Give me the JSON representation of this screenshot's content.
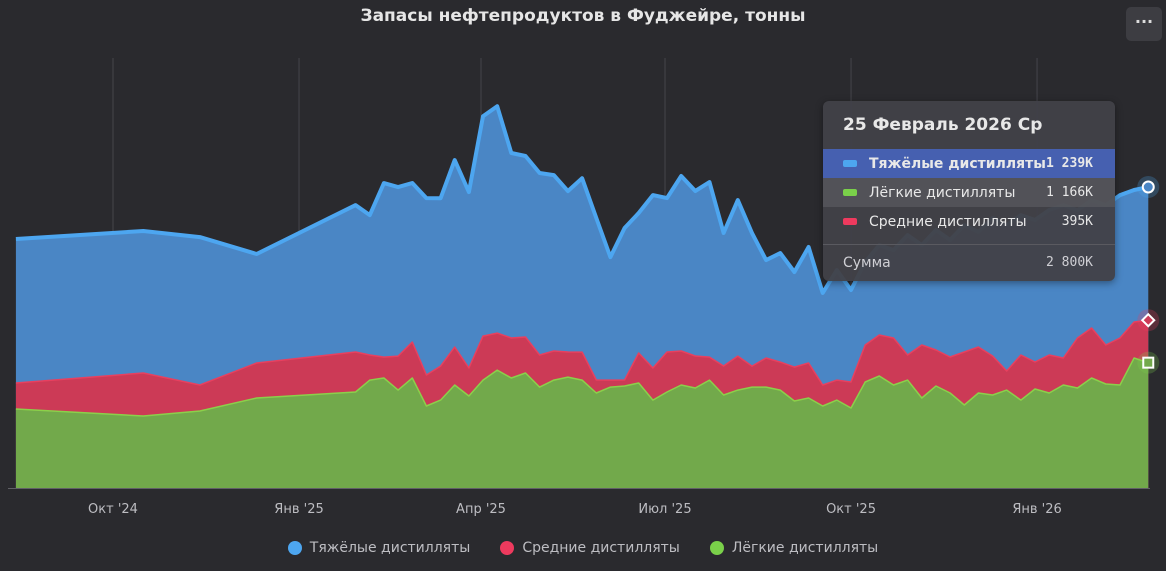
{
  "chart_data": {
    "type": "area",
    "stacked": true,
    "title": "Запасы нефтепродуктов в Фуджейре, тонны",
    "xlabel": "",
    "ylabel": "",
    "unit": "K tonnes",
    "ylim": [
      0,
      4000
    ],
    "grid": "vertical",
    "legend_position": "bottom",
    "x_ticks": [
      {
        "date": "2024-10-01",
        "label": "Окт '24"
      },
      {
        "date": "2025-01-01",
        "label": "Янв '25"
      },
      {
        "date": "2025-04-01",
        "label": "Апр '25"
      },
      {
        "date": "2025-07-01",
        "label": "Июл '25"
      },
      {
        "date": "2025-10-01",
        "label": "Окт '25"
      },
      {
        "date": "2026-01-01",
        "label": "Янв '26"
      }
    ],
    "x": [
      "2024-08-14",
      "2024-10-16",
      "2024-11-13",
      "2024-12-11",
      "2025-01-29",
      "2025-02-05",
      "2025-02-12",
      "2025-02-19",
      "2025-02-26",
      "2025-03-05",
      "2025-03-12",
      "2025-03-19",
      "2025-03-26",
      "2025-04-02",
      "2025-04-09",
      "2025-04-16",
      "2025-04-23",
      "2025-04-30",
      "2025-05-07",
      "2025-05-14",
      "2025-05-21",
      "2025-05-28",
      "2025-06-04",
      "2025-06-11",
      "2025-06-18",
      "2025-06-25",
      "2025-07-02",
      "2025-07-09",
      "2025-07-16",
      "2025-07-23",
      "2025-07-30",
      "2025-08-06",
      "2025-08-13",
      "2025-08-20",
      "2025-08-27",
      "2025-09-03",
      "2025-09-10",
      "2025-09-17",
      "2025-09-24",
      "2025-10-01",
      "2025-10-08",
      "2025-10-15",
      "2025-10-22",
      "2025-10-29",
      "2025-11-05",
      "2025-11-12",
      "2025-11-19",
      "2025-11-26",
      "2025-12-03",
      "2025-12-10",
      "2025-12-17",
      "2025-12-24",
      "2025-12-31",
      "2026-01-07",
      "2026-01-14",
      "2026-01-21",
      "2026-01-28",
      "2026-02-04",
      "2026-02-11",
      "2026-02-18",
      "2026-02-25"
    ],
    "series": [
      {
        "name": "Лёгкие дистилляты",
        "color": "#72a94b",
        "line": "#8bd04a",
        "marker": "square",
        "values": [
          735,
          670,
          716,
          837,
          893,
          1004,
          1023,
          911,
          1023,
          763,
          818,
          958,
          856,
          1004,
          1097,
          1023,
          1070,
          939,
          1004,
          1032,
          1004,
          884,
          939,
          949,
          977,
          818,
          893,
          958,
          930,
          1004,
          865,
          911,
          939,
          939,
          911,
          809,
          837,
          763,
          818,
          744,
          986,
          1042,
          958,
          1004,
          837,
          949,
          884,
          772,
          884,
          865,
          911,
          818,
          921,
          884,
          958,
          930,
          1023,
          967,
          958,
          1209,
          1166
        ]
      },
      {
        "name": "Средние дистилляты",
        "color": "#cc3a56",
        "line": "#e8405f",
        "marker": "diamond",
        "values": [
          242,
          400,
          242,
          326,
          372,
          233,
          195,
          316,
          335,
          288,
          316,
          353,
          260,
          409,
          344,
          372,
          335,
          298,
          270,
          233,
          260,
          121,
          65,
          56,
          279,
          298,
          372,
          316,
          298,
          214,
          270,
          316,
          195,
          270,
          260,
          316,
          326,
          195,
          186,
          242,
          344,
          381,
          437,
          233,
          493,
          335,
          335,
          493,
          428,
          363,
          177,
          419,
          251,
          353,
          251,
          465,
          465,
          363,
          437,
          335,
          395
        ]
      },
      {
        "name": "Тяжёлые дистилляты",
        "color": "#4a86c5",
        "line": "#4da6f0",
        "marker": "circle",
        "values": [
          1339,
          1321,
          1376,
          1014,
          1367,
          1302,
          1618,
          1572,
          1479,
          1646,
          1562,
          1739,
          1637,
          2046,
          2111,
          1721,
          1683,
          1693,
          1637,
          1497,
          1618,
          1507,
          1144,
          1414,
          1302,
          1609,
          1432,
          1628,
          1535,
          1628,
          1237,
          1451,
          1237,
          911,
          1014,
          884,
          1079,
          856,
          1023,
          856,
          772,
          837,
          818,
          1116,
          930,
          1116,
          1088,
          1181,
          1070,
          1283,
          1358,
          1302,
          1321,
          1349,
          1423,
          1190,
          1190,
          1302,
          1330,
          1228,
          1239
        ]
      }
    ],
    "legend": [
      "Тяжёлые дистилляты",
      "Средние дистилляты",
      "Лёгкие дистилляты"
    ]
  },
  "menu_label": "···",
  "tooltip": {
    "date": "25 Февраль 2026 Ср",
    "rows": [
      {
        "name": "Тяжёлые дистилляты",
        "value": "1 239K",
        "color": "#4da6f0"
      },
      {
        "name": "Лёгкие дистилляты",
        "value": "1 166K",
        "color": "#7ad04a"
      },
      {
        "name": "Средние дистилляты",
        "value": "395K",
        "color": "#ee3a5e"
      }
    ],
    "sum_label": "Сумма",
    "sum_value": "2 800K"
  },
  "legend_colors": [
    "#4da6f0",
    "#ee3a5e",
    "#7ad04a"
  ]
}
